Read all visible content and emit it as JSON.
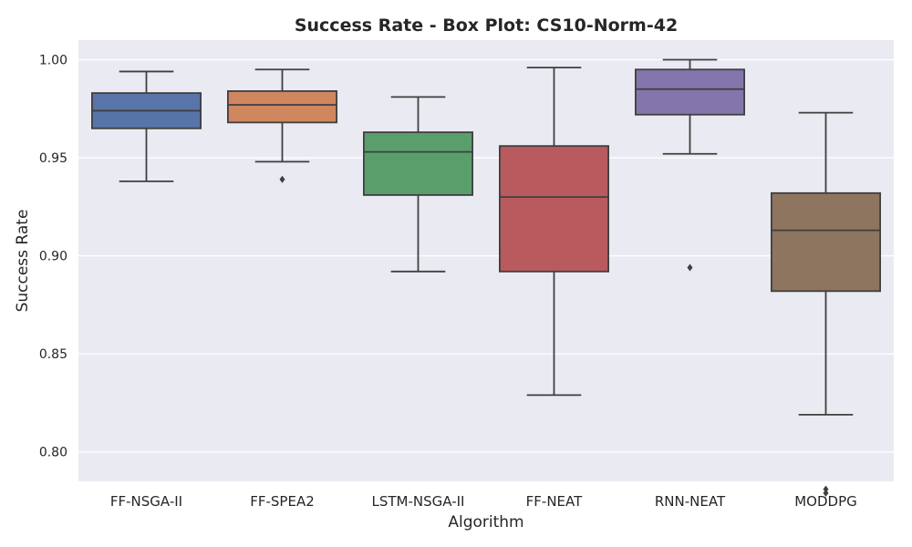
{
  "chart_data": {
    "type": "box",
    "title": "Success Rate - Box Plot: CS10-Norm-42",
    "xlabel": "Algorithm",
    "ylabel": "Success Rate",
    "ylim": [
      0.785,
      1.01
    ],
    "yticks": [
      0.8,
      0.85,
      0.9,
      0.95,
      1.0
    ],
    "ytick_labels": [
      "0.80",
      "0.85",
      "0.90",
      "0.95",
      "1.00"
    ],
    "grid": true,
    "categories": [
      "FF-NSGA-II",
      "FF-SPEA2",
      "LSTM-NSGA-II",
      "FF-NEAT",
      "RNN-NEAT",
      "MODDPG"
    ],
    "boxes": [
      {
        "category": "FF-NSGA-II",
        "whisker_low": 0.938,
        "q1": 0.965,
        "median": 0.974,
        "q3": 0.983,
        "whisker_high": 0.994,
        "outliers": [],
        "color": "#5874a8"
      },
      {
        "category": "FF-SPEA2",
        "whisker_low": 0.948,
        "q1": 0.968,
        "median": 0.977,
        "q3": 0.984,
        "whisker_high": 0.995,
        "outliers": [
          0.939
        ],
        "color": "#d0865f"
      },
      {
        "category": "LSTM-NSGA-II",
        "whisker_low": 0.892,
        "q1": 0.931,
        "median": 0.953,
        "q3": 0.963,
        "whisker_high": 0.981,
        "outliers": [],
        "color": "#5a9f6b"
      },
      {
        "category": "FF-NEAT",
        "whisker_low": 0.829,
        "q1": 0.892,
        "median": 0.93,
        "q3": 0.956,
        "whisker_high": 0.996,
        "outliers": [],
        "color": "#b95a5e"
      },
      {
        "category": "RNN-NEAT",
        "whisker_low": 0.952,
        "q1": 0.972,
        "median": 0.985,
        "q3": 0.995,
        "whisker_high": 1.0,
        "outliers": [
          0.894
        ],
        "color": "#8575ad"
      },
      {
        "category": "MODDPG",
        "whisker_low": 0.819,
        "q1": 0.882,
        "median": 0.913,
        "q3": 0.932,
        "whisker_high": 0.973,
        "outliers": [
          0.781,
          0.779
        ],
        "color": "#8e7560"
      }
    ],
    "colors": {
      "plot_background": "#eaeaf2",
      "grid": "#ffffff",
      "box_edge": "#3f3f3f"
    }
  }
}
